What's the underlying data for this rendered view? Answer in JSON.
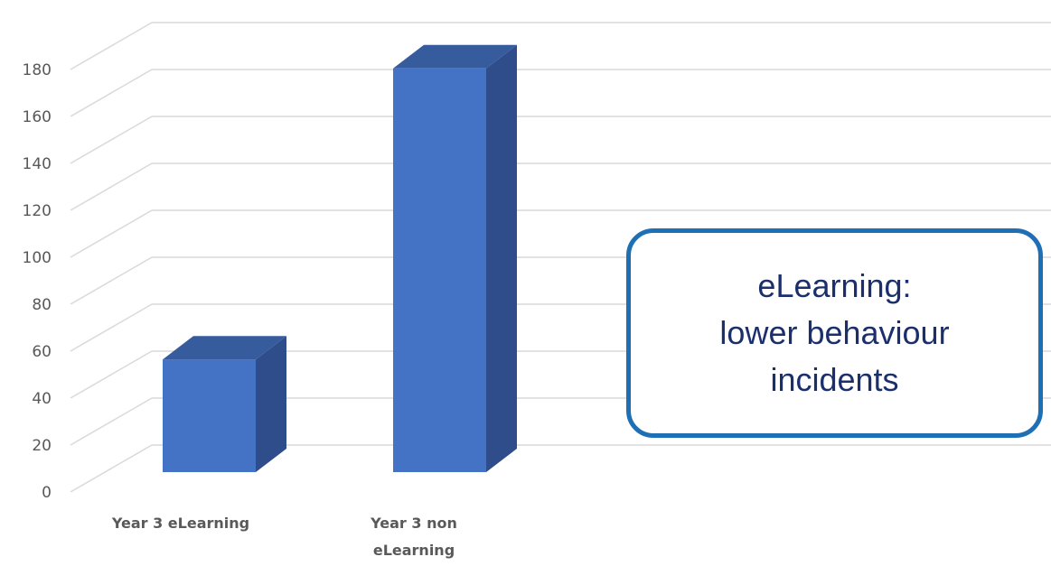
{
  "chart_data": {
    "type": "bar",
    "categories": [
      [
        "Year 3 eLearning"
      ],
      [
        "Year 3 non",
        "eLearning"
      ]
    ],
    "values": [
      48,
      172
    ],
    "title": "",
    "xlabel": "",
    "ylabel": "",
    "ylim": [
      0,
      190
    ],
    "yticks": [
      0,
      20,
      40,
      60,
      80,
      100,
      120,
      140,
      160,
      180
    ],
    "grid": true,
    "three_d": true,
    "colors": {
      "front": "#4472c4",
      "side": "#2f4d8a",
      "top": "#365c9e"
    }
  },
  "callout": {
    "lines": [
      "eLearning:",
      "lower behaviour",
      "incidents"
    ],
    "border_color": "#1f6fb5",
    "text_color": "#1a2f6b"
  }
}
